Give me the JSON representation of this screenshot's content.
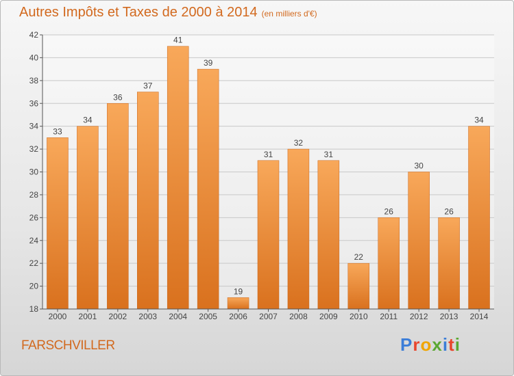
{
  "title": "Autres Impôts et Taxes de 2000 à 2014",
  "unit_note": "(en milliers d'€)",
  "commune": "FARSCHVILLER",
  "logo": {
    "letters": [
      "P",
      "r",
      "o",
      "x",
      "i",
      "t",
      "i"
    ],
    "colors": [
      "#3b7dd8",
      "#e8462d",
      "#f0a500",
      "#5aa832",
      "#3b7dd8",
      "#e8462d",
      "#5aa832"
    ]
  },
  "colors": {
    "bar_top": "#f8a85a",
    "bar_bottom": "#d9711e",
    "accent": "#d2691e"
  },
  "chart_data": {
    "type": "bar",
    "categories": [
      "2000",
      "2001",
      "2002",
      "2003",
      "2004",
      "2005",
      "2006",
      "2007",
      "2008",
      "2009",
      "2010",
      "2011",
      "2012",
      "2013",
      "2014"
    ],
    "values": [
      33,
      34,
      36,
      37,
      41,
      39,
      19,
      31,
      32,
      31,
      22,
      26,
      30,
      26,
      34
    ],
    "ylim": [
      18,
      42
    ],
    "yticks": [
      18,
      20,
      22,
      24,
      26,
      28,
      30,
      32,
      34,
      36,
      38,
      40,
      42
    ],
    "grid": true
  }
}
